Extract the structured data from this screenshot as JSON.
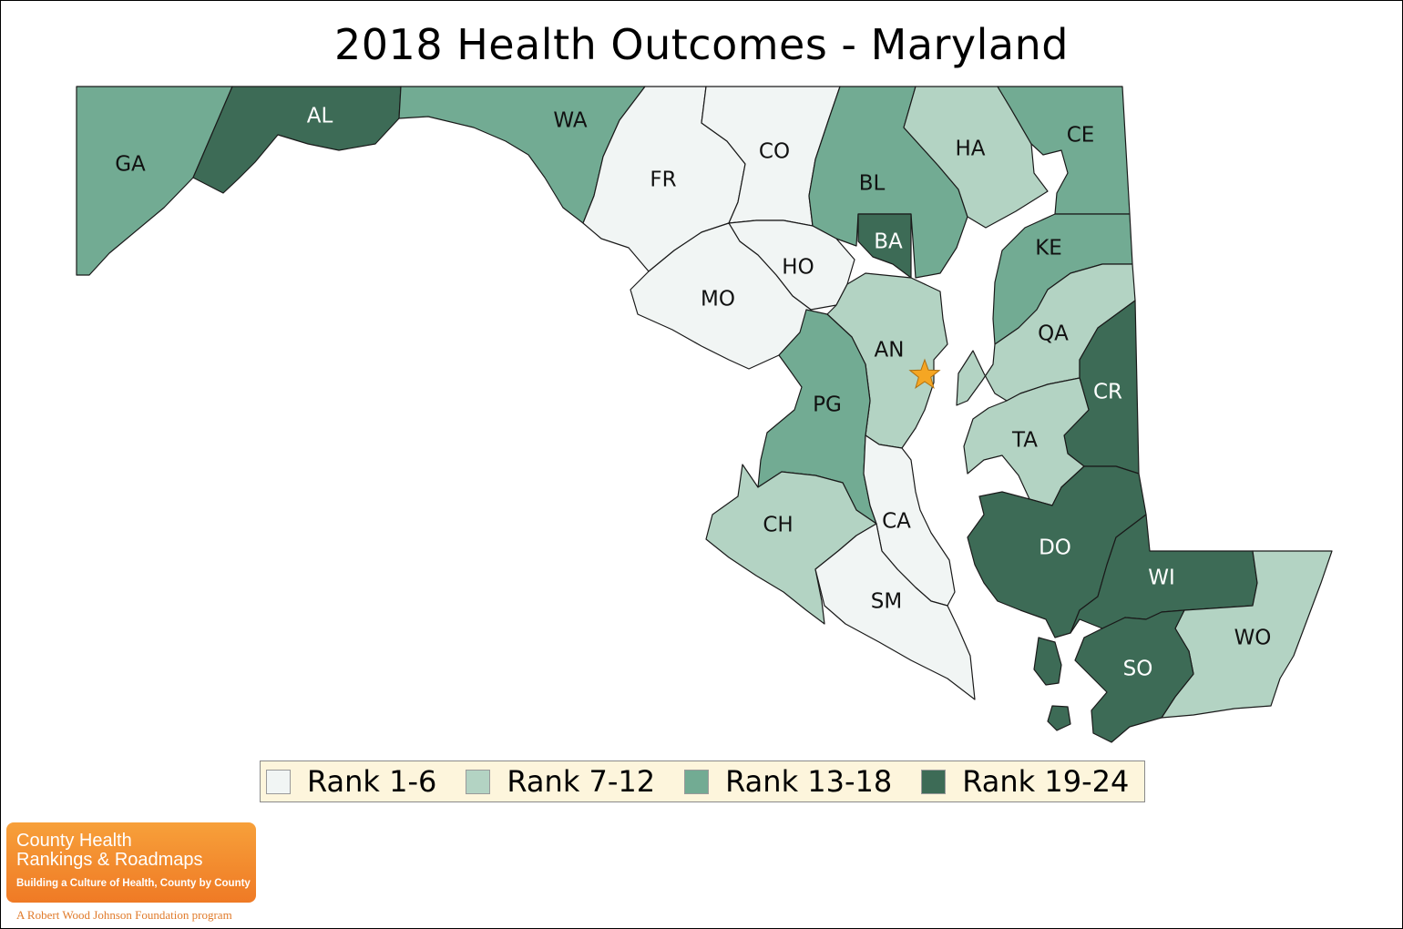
{
  "title": "2018 Health Outcomes - Maryland",
  "colors": {
    "rank_1_6": "#f1f5f4",
    "rank_7_12": "#b3d3c3",
    "rank_13_18": "#72ab93",
    "rank_19_24": "#3d6b56",
    "capital_star": "#f5a623",
    "legend_bg": "#fdf5dc"
  },
  "legend": [
    {
      "label": "Rank 1-6",
      "group": "rank_1_6"
    },
    {
      "label": "Rank 7-12",
      "group": "rank_7_12"
    },
    {
      "label": "Rank 13-18",
      "group": "rank_13_18"
    },
    {
      "label": "Rank 19-24",
      "group": "rank_19_24"
    }
  ],
  "counties": [
    {
      "abbr": "GA",
      "group": "rank_13_18"
    },
    {
      "abbr": "AL",
      "group": "rank_19_24"
    },
    {
      "abbr": "WA",
      "group": "rank_13_18"
    },
    {
      "abbr": "FR",
      "group": "rank_1_6"
    },
    {
      "abbr": "CO",
      "group": "rank_1_6"
    },
    {
      "abbr": "BL",
      "group": "rank_13_18"
    },
    {
      "abbr": "HA",
      "group": "rank_7_12"
    },
    {
      "abbr": "CE",
      "group": "rank_13_18"
    },
    {
      "abbr": "BA",
      "group": "rank_19_24"
    },
    {
      "abbr": "KE",
      "group": "rank_13_18"
    },
    {
      "abbr": "HO",
      "group": "rank_1_6"
    },
    {
      "abbr": "MO",
      "group": "rank_1_6"
    },
    {
      "abbr": "AN",
      "group": "rank_7_12"
    },
    {
      "abbr": "QA",
      "group": "rank_7_12"
    },
    {
      "abbr": "PG",
      "group": "rank_13_18"
    },
    {
      "abbr": "CR",
      "group": "rank_19_24"
    },
    {
      "abbr": "TA",
      "group": "rank_7_12"
    },
    {
      "abbr": "CA",
      "group": "rank_1_6"
    },
    {
      "abbr": "CH",
      "group": "rank_7_12"
    },
    {
      "abbr": "DO",
      "group": "rank_19_24"
    },
    {
      "abbr": "WI",
      "group": "rank_19_24"
    },
    {
      "abbr": "SM",
      "group": "rank_1_6"
    },
    {
      "abbr": "WO",
      "group": "rank_7_12"
    },
    {
      "abbr": "SO",
      "group": "rank_19_24"
    }
  ],
  "logo": {
    "line1": "County Health",
    "line2": "Rankings & Roadmaps",
    "tagline": "Building a Culture of Health, County by County",
    "foundation": "A Robert Wood Johnson Foundation program"
  }
}
